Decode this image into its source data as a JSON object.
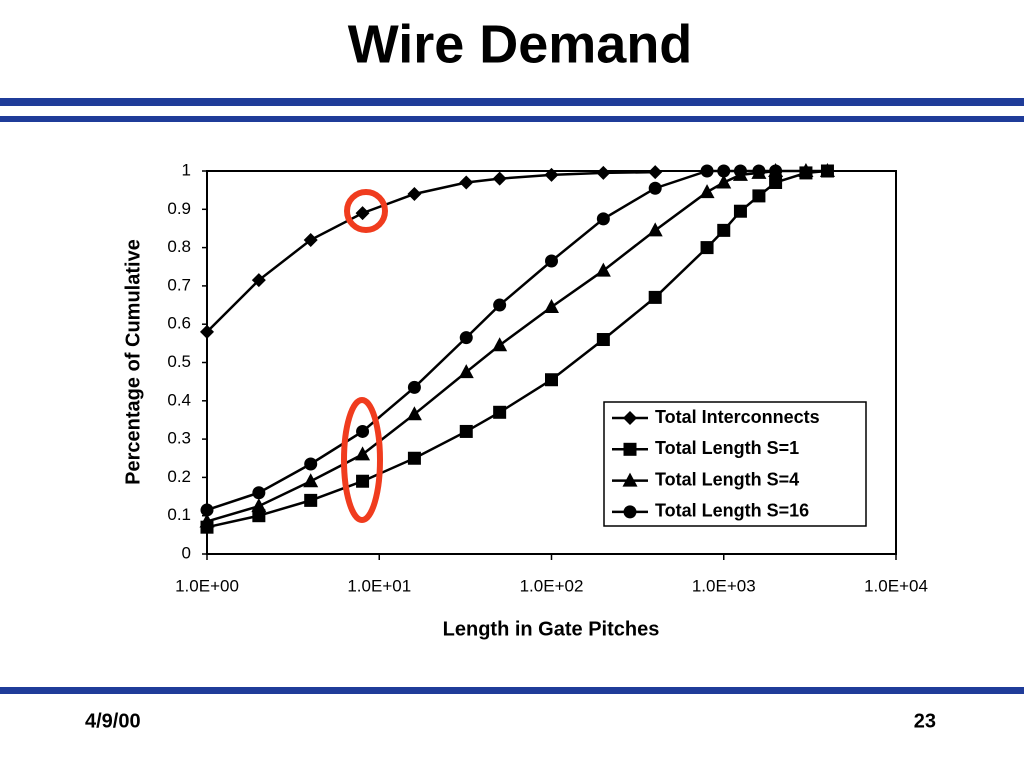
{
  "slide": {
    "title": "Wire Demand",
    "date": "4/9/00",
    "page": "23"
  },
  "chart_data": {
    "type": "line",
    "x_log_scale": true,
    "xlabel": "Length in Gate Pitches",
    "ylabel": "Percentage of Cumulative",
    "xlim": [
      1,
      10000
    ],
    "ylim": [
      0,
      1
    ],
    "xticks": [
      {
        "value": 1,
        "label": "1.0E+00"
      },
      {
        "value": 10,
        "label": "1.0E+01"
      },
      {
        "value": 100,
        "label": "1.0E+02"
      },
      {
        "value": 1000,
        "label": "1.0E+03"
      },
      {
        "value": 10000,
        "label": "1.0E+04"
      }
    ],
    "yticks": [
      0,
      0.1,
      0.2,
      0.3,
      0.4,
      0.5,
      0.6,
      0.7,
      0.8,
      0.9,
      1
    ],
    "legend": "lower right",
    "series": [
      {
        "name": "Total Interconnects",
        "color": "#000000",
        "marker": "diamond",
        "x": [
          1,
          2,
          4,
          8,
          16,
          32,
          50,
          100,
          200,
          400
        ],
        "values": [
          0.58,
          0.715,
          0.82,
          0.89,
          0.94,
          0.97,
          0.98,
          0.99,
          0.995,
          0.997
        ]
      },
      {
        "name": "Total Length S=1",
        "color": "#000000",
        "marker": "square",
        "x": [
          1,
          2,
          4,
          8,
          16,
          32,
          50,
          100,
          200,
          400,
          800,
          1000,
          1250,
          1600,
          2000,
          3000,
          4000
        ],
        "values": [
          0.07,
          0.1,
          0.14,
          0.19,
          0.25,
          0.32,
          0.37,
          0.455,
          0.56,
          0.67,
          0.8,
          0.845,
          0.895,
          0.935,
          0.97,
          0.995,
          1
        ]
      },
      {
        "name": "Total Length S=4",
        "color": "#000000",
        "marker": "triangle",
        "x": [
          1,
          2,
          4,
          8,
          16,
          32,
          50,
          100,
          200,
          400,
          800,
          1000,
          1250,
          1600,
          2000,
          3000,
          4000
        ],
        "values": [
          0.085,
          0.125,
          0.19,
          0.26,
          0.365,
          0.475,
          0.545,
          0.645,
          0.74,
          0.845,
          0.945,
          0.97,
          0.99,
          0.995,
          1,
          1,
          1
        ]
      },
      {
        "name": "Total Length S=16",
        "color": "#000000",
        "marker": "circle",
        "x": [
          1,
          2,
          4,
          8,
          16,
          32,
          50,
          100,
          200,
          400,
          800,
          1000,
          1250,
          1600,
          2000
        ],
        "values": [
          0.115,
          0.16,
          0.235,
          0.32,
          0.435,
          0.565,
          0.65,
          0.765,
          0.875,
          0.955,
          1,
          1,
          1,
          1,
          1
        ]
      }
    ]
  }
}
